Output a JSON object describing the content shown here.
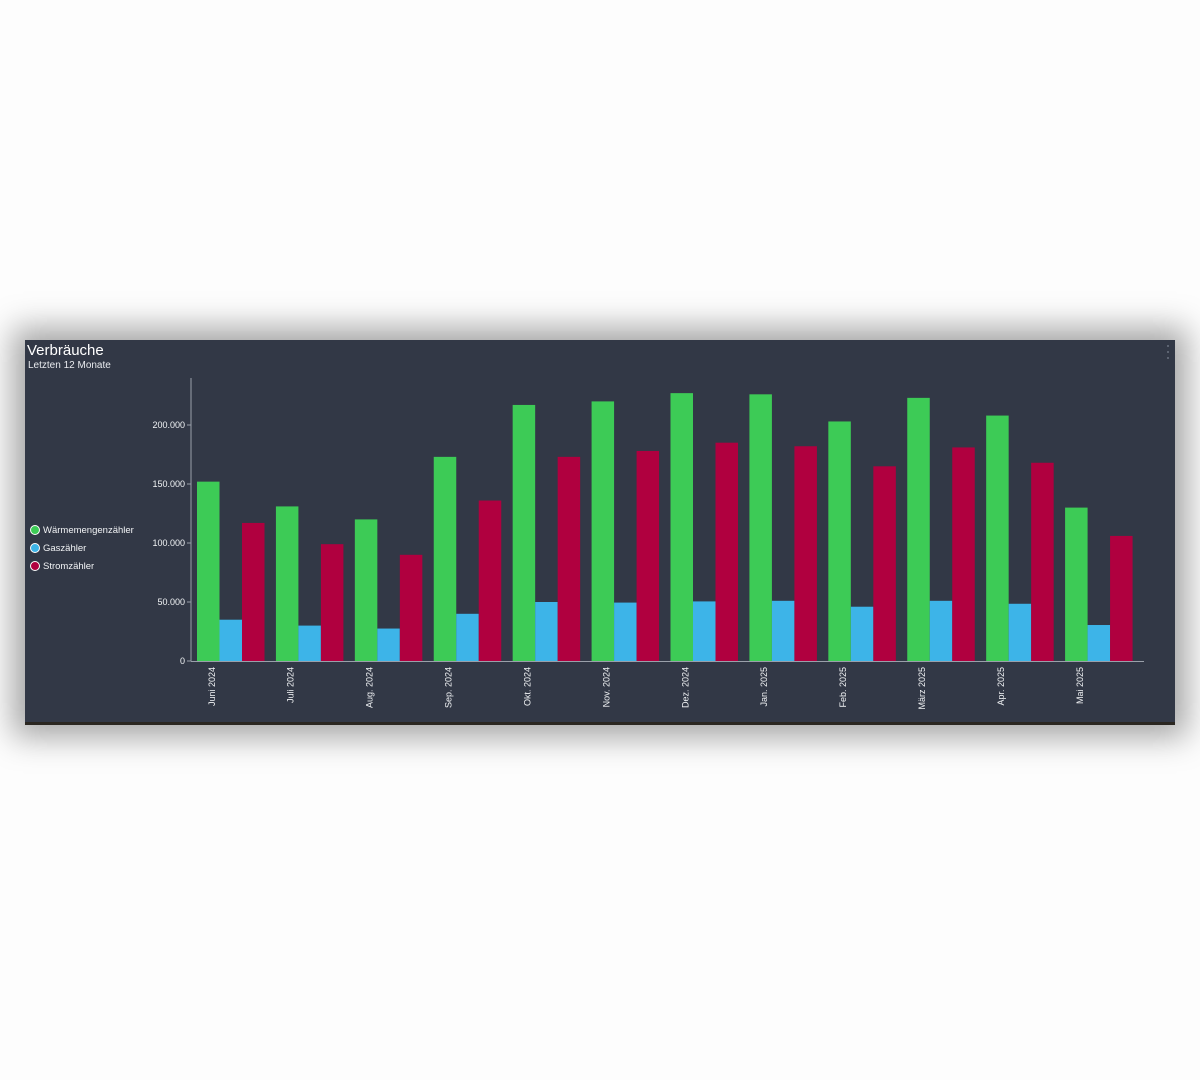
{
  "panel": {
    "title": "Verbräuche",
    "subtitle": "Letzten 12 Monate",
    "menu_icon": "more-vertical-icon"
  },
  "chart_data": {
    "type": "bar",
    "title": "Verbräuche",
    "subtitle": "Letzten 12 Monate",
    "xlabel": "",
    "ylabel": "",
    "ylim": [
      0,
      240000
    ],
    "yticks": [
      0,
      50000,
      100000,
      150000,
      200000
    ],
    "ytick_labels": [
      "0",
      "50.000",
      "100.000",
      "150.000",
      "200.000"
    ],
    "grid": false,
    "legend_position": "left",
    "categories": [
      "Juni 2024",
      "Juli 2024",
      "Aug. 2024",
      "Sep. 2024",
      "Okt. 2024",
      "Nov. 2024",
      "Dez. 2024",
      "Jan. 2025",
      "Feb. 2025",
      "März 2025",
      "Apr. 2025",
      "Mai 2025"
    ],
    "series": [
      {
        "name": "Wärmemengenzähler",
        "color": "#3dcb56",
        "values": [
          152000,
          131000,
          120000,
          173000,
          217000,
          220000,
          227000,
          226000,
          203000,
          223000,
          208000,
          130000
        ]
      },
      {
        "name": "Gaszähler",
        "color": "#3db4e8",
        "values": [
          35000,
          30000,
          27500,
          40000,
          50000,
          49500,
          50500,
          51000,
          46000,
          51000,
          48500,
          30500
        ]
      },
      {
        "name": "Stromzähler",
        "color": "#b0003f",
        "values": [
          117000,
          99000,
          90000,
          136000,
          173000,
          178000,
          185000,
          182000,
          165000,
          181000,
          168000,
          106000
        ]
      }
    ]
  }
}
